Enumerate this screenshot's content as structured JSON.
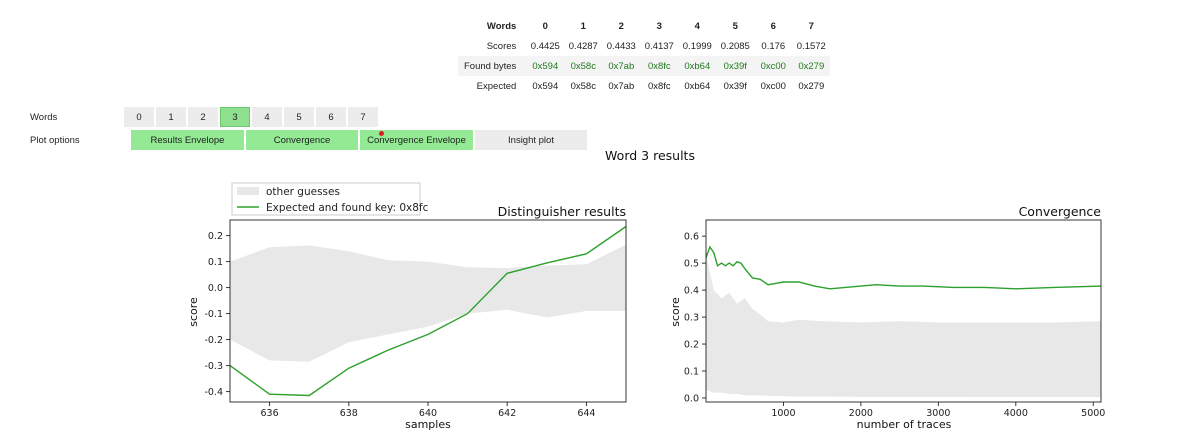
{
  "summary": {
    "header_label": "Words",
    "words": [
      "0",
      "1",
      "2",
      "3",
      "4",
      "5",
      "6",
      "7"
    ],
    "rows": [
      {
        "label": "Scores",
        "values": [
          "0.4425",
          "0.4287",
          "0.4433",
          "0.4137",
          "0.1999",
          "0.2085",
          "0.176",
          "0.1572"
        ]
      },
      {
        "label": "Found bytes",
        "values": [
          "0x594",
          "0x58c",
          "0x7ab",
          "0x8fc",
          "0xb64",
          "0x39f",
          "0xc00",
          "0x279"
        ]
      },
      {
        "label": "Expected",
        "values": [
          "0x594",
          "0x58c",
          "0x7ab",
          "0x8fc",
          "0xb64",
          "0x39f",
          "0xc00",
          "0x279"
        ]
      }
    ]
  },
  "controls": {
    "words_label": "Words",
    "plot_options_label": "Plot options",
    "word_buttons": [
      "0",
      "1",
      "2",
      "3",
      "4",
      "5",
      "6",
      "7"
    ],
    "selected_word": "3",
    "plot_buttons": [
      {
        "label": "Results Envelope",
        "active": true
      },
      {
        "label": "Convergence",
        "active": true
      },
      {
        "label": "Convergence Envelope",
        "active": true
      },
      {
        "label": "Insight plot",
        "active": false
      }
    ],
    "accent_active": "#94ea94",
    "accent_off": "#ececec"
  },
  "results_title": "Word 3 results",
  "legend": {
    "other_label": "other guesses",
    "key_label": "Expected and found key: 0x8fc"
  },
  "chart_data": [
    {
      "type": "line",
      "title": "Distinguisher results",
      "xlabel": "samples",
      "ylabel": "score",
      "xlim": [
        635,
        645
      ],
      "ylim": [
        -0.44,
        0.26
      ],
      "xticks": [
        636,
        638,
        640,
        642,
        644
      ],
      "yticks": [
        -0.4,
        -0.3,
        -0.2,
        -0.1,
        0.0,
        0.1,
        0.2
      ],
      "series": [
        {
          "name": "Expected and found key: 0x8fc",
          "color": "#2ca02c",
          "x": [
            635,
            636,
            637,
            638,
            639,
            640,
            641,
            642,
            643,
            644,
            645
          ],
          "y": [
            -0.3,
            -0.41,
            -0.415,
            -0.31,
            -0.24,
            -0.18,
            -0.1,
            0.055,
            0.095,
            0.13,
            0.235
          ]
        }
      ],
      "envelope": {
        "color": "#e8e8e8",
        "x": [
          635,
          636,
          637,
          638,
          639,
          640,
          641,
          642,
          643,
          644,
          645
        ],
        "upper": [
          0.1,
          0.155,
          0.162,
          0.14,
          0.105,
          0.1,
          0.078,
          0.075,
          0.085,
          0.09,
          0.165
        ],
        "lower": [
          -0.2,
          -0.28,
          -0.285,
          -0.21,
          -0.18,
          -0.15,
          -0.1,
          -0.085,
          -0.115,
          -0.09,
          -0.09
        ]
      }
    },
    {
      "type": "line",
      "title": "Convergence",
      "xlabel": "number of traces",
      "ylabel": "score",
      "xlim": [
        0,
        5100
      ],
      "ylim": [
        -0.015,
        0.66
      ],
      "xticks": [
        1000,
        2000,
        3000,
        4000,
        5000
      ],
      "yticks": [
        0.0,
        0.1,
        0.2,
        0.3,
        0.4,
        0.5,
        0.6
      ],
      "series": [
        {
          "name": "Expected and found key: 0x8fc",
          "color": "#2ca02c",
          "x": [
            0,
            50,
            100,
            150,
            200,
            250,
            300,
            350,
            400,
            450,
            500,
            600,
            700,
            800,
            900,
            1000,
            1200,
            1400,
            1600,
            1800,
            2000,
            2200,
            2500,
            2800,
            3200,
            3600,
            4000,
            4500,
            5100
          ],
          "y": [
            0.52,
            0.56,
            0.54,
            0.49,
            0.5,
            0.49,
            0.5,
            0.49,
            0.505,
            0.5,
            0.48,
            0.445,
            0.44,
            0.42,
            0.425,
            0.43,
            0.43,
            0.415,
            0.405,
            0.41,
            0.415,
            0.42,
            0.415,
            0.415,
            0.41,
            0.41,
            0.405,
            0.41,
            0.415
          ]
        }
      ],
      "envelope": {
        "color": "#e8e8e8",
        "x": [
          0,
          100,
          200,
          300,
          400,
          500,
          600,
          700,
          800,
          1000,
          1200,
          1500,
          2000,
          2500,
          3000,
          3500,
          4000,
          4500,
          5100
        ],
        "upper": [
          0.53,
          0.4,
          0.37,
          0.39,
          0.35,
          0.37,
          0.33,
          0.31,
          0.285,
          0.28,
          0.29,
          0.285,
          0.28,
          0.285,
          0.28,
          0.28,
          0.28,
          0.28,
          0.285
        ],
        "lower": [
          0.03,
          0.02,
          0.02,
          0.015,
          0.015,
          0.01,
          0.01,
          0.01,
          0.008,
          0.006,
          0.005,
          0.005,
          0.004,
          0.004,
          0.004,
          0.003,
          0.003,
          0.003,
          0.003
        ]
      }
    }
  ]
}
